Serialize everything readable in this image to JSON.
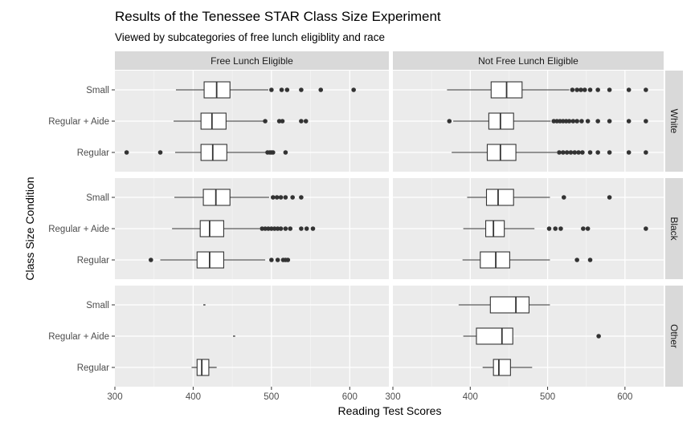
{
  "chart_data": {
    "type": "boxplot",
    "title": "Results of the Tenessee STAR Class Size Experiment",
    "subtitle": "Viewed by subcategories of free lunch eligiblity and race",
    "xlabel": "Reading Test Scores",
    "ylabel": "Class Size Condition",
    "xlim": [
      300,
      650
    ],
    "x_ticks": [
      300,
      400,
      500,
      600
    ],
    "categories": [
      "Small",
      "Regular + Aide",
      "Regular"
    ],
    "columns": [
      "Free Lunch Eligible",
      "Not Free Lunch Eligible"
    ],
    "rows": [
      "White",
      "Black",
      "Other"
    ],
    "grid": true,
    "panels": [
      {
        "column": "Free Lunch Eligible",
        "row": "White",
        "boxes": [
          {
            "category": "Small",
            "whisker_low": 378,
            "q1": 414,
            "median": 430,
            "q3": 447,
            "whisker_high": 496,
            "outliers": [
              500,
              513,
              520,
              538,
              563,
              605
            ]
          },
          {
            "category": "Regular + Aide",
            "whisker_low": 375,
            "q1": 410,
            "median": 424,
            "q3": 442,
            "whisker_high": 490,
            "outliers": [
              492,
              510,
              514,
              538,
              544
            ]
          },
          {
            "category": "Regular",
            "whisker_low": 377,
            "q1": 410,
            "median": 425,
            "q3": 443,
            "whisker_high": 493,
            "outliers": [
              315,
              358,
              495,
              498,
              500,
              502,
              518
            ]
          }
        ]
      },
      {
        "column": "Not Free Lunch Eligible",
        "row": "White",
        "boxes": [
          {
            "category": "Small",
            "whisker_low": 370,
            "q1": 427,
            "median": 447,
            "q3": 467,
            "whisker_high": 528,
            "outliers": [
              532,
              538,
              543,
              548,
              555,
              565,
              580,
              605,
              627
            ]
          },
          {
            "category": "Regular + Aide",
            "whisker_low": 378,
            "q1": 424,
            "median": 439,
            "q3": 456,
            "whisker_high": 504,
            "outliers": [
              373,
              508,
              512,
              516,
              520,
              524,
              528,
              533,
              538,
              544,
              552,
              565,
              580,
              605,
              627
            ]
          },
          {
            "category": "Regular",
            "whisker_low": 376,
            "q1": 422,
            "median": 439,
            "q3": 459,
            "whisker_high": 512,
            "outliers": [
              515,
              520,
              525,
              530,
              535,
              540,
              545,
              555,
              565,
              580,
              605,
              627
            ]
          }
        ]
      },
      {
        "column": "Free Lunch Eligible",
        "row": "Black",
        "boxes": [
          {
            "category": "Small",
            "whisker_low": 376,
            "q1": 413,
            "median": 429,
            "q3": 447,
            "whisker_high": 497,
            "outliers": [
              502,
              507,
              512,
              518,
              527,
              538
            ]
          },
          {
            "category": "Regular + Aide",
            "whisker_low": 373,
            "q1": 409,
            "median": 421,
            "q3": 439,
            "whisker_high": 485,
            "outliers": [
              488,
              492,
              496,
              500,
              504,
              508,
              512,
              518,
              524,
              538,
              545,
              553
            ]
          },
          {
            "category": "Regular",
            "whisker_low": 358,
            "q1": 405,
            "median": 421,
            "q3": 439,
            "whisker_high": 492,
            "outliers": [
              346,
              500,
              508,
              515,
              518,
              521
            ]
          }
        ]
      },
      {
        "column": "Not Free Lunch Eligible",
        "row": "Black",
        "boxes": [
          {
            "category": "Small",
            "whisker_low": 396,
            "q1": 421,
            "median": 436,
            "q3": 456,
            "whisker_high": 503,
            "outliers": [
              521,
              580
            ]
          },
          {
            "category": "Regular + Aide",
            "whisker_low": 391,
            "q1": 420,
            "median": 430,
            "q3": 444,
            "whisker_high": 483,
            "outliers": [
              502,
              510,
              517,
              546,
              552,
              627
            ]
          },
          {
            "category": "Regular",
            "whisker_low": 390,
            "q1": 413,
            "median": 433,
            "q3": 451,
            "whisker_high": 503,
            "outliers": [
              538,
              555
            ]
          }
        ]
      },
      {
        "column": "Free Lunch Eligible",
        "row": "Other",
        "boxes": [
          {
            "category": "Small",
            "whisker_low": 413,
            "q1": 413,
            "median": 414,
            "q3": 415,
            "whisker_high": 415,
            "outliers": []
          },
          {
            "category": "Regular + Aide",
            "whisker_low": 451,
            "q1": 451,
            "median": 452,
            "q3": 453,
            "whisker_high": 453,
            "outliers": []
          },
          {
            "category": "Regular",
            "whisker_low": 398,
            "q1": 405,
            "median": 411,
            "q3": 420,
            "whisker_high": 430,
            "outliers": []
          }
        ]
      },
      {
        "column": "Not Free Lunch Eligible",
        "row": "Other",
        "boxes": [
          {
            "category": "Small",
            "whisker_low": 385,
            "q1": 426,
            "median": 459,
            "q3": 476,
            "whisker_high": 503,
            "outliers": []
          },
          {
            "category": "Regular + Aide",
            "whisker_low": 391,
            "q1": 408,
            "median": 441,
            "q3": 455,
            "whisker_high": 455,
            "outliers": [
              566
            ]
          },
          {
            "category": "Regular",
            "whisker_low": 416,
            "q1": 430,
            "median": 437,
            "q3": 452,
            "whisker_high": 480,
            "outliers": []
          }
        ]
      }
    ]
  }
}
